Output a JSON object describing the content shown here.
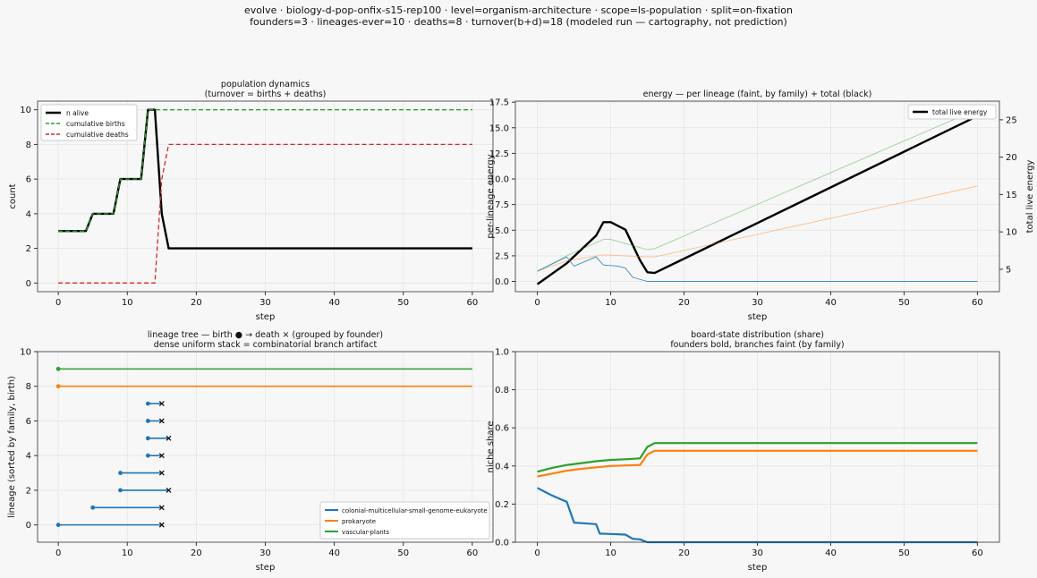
{
  "suptitle": {
    "line1": "evolve · biology-d-pop-onfix-s15-rep100 · level=organism-architecture · scope=ls-population · split=on-fixation",
    "line2": "founders=3 · lineages-ever=10 · deaths=8 · turnover(b+d)=18   (modeled run — cartography, not prediction)"
  },
  "colors": {
    "alive": "#000000",
    "births": "#2ca02c",
    "deaths": "#d62728",
    "blue": "#1f77b4",
    "orange": "#ff7f0e",
    "green": "#2ca02c",
    "grid": "#e6e6e6",
    "background": "#f7f7f7"
  },
  "chart_data": [
    {
      "id": "population",
      "type": "line",
      "title": "population dynamics",
      "subtitle": "(turnover = births + deaths)",
      "xlabel": "step",
      "ylabel": "count",
      "xlim": [
        -3,
        63
      ],
      "ylim": [
        -0.5,
        10.5
      ],
      "xticks": [
        0,
        10,
        20,
        30,
        40,
        50,
        60
      ],
      "yticks": [
        0,
        2,
        4,
        6,
        8,
        10
      ],
      "grid": true,
      "legend": "top-left",
      "series": [
        {
          "name": "n alive",
          "style": "solid",
          "color": "#000000",
          "points": [
            [
              0,
              3
            ],
            [
              4,
              3
            ],
            [
              5,
              4
            ],
            [
              8,
              4
            ],
            [
              9,
              6
            ],
            [
              12,
              6
            ],
            [
              13,
              10
            ],
            [
              14,
              10
            ],
            [
              15,
              4
            ],
            [
              16,
              2
            ],
            [
              60,
              2
            ]
          ]
        },
        {
          "name": "cumulative births",
          "style": "dashed",
          "color": "#2ca02c",
          "points": [
            [
              0,
              3
            ],
            [
              4,
              3
            ],
            [
              5,
              4
            ],
            [
              8,
              4
            ],
            [
              9,
              6
            ],
            [
              12,
              6
            ],
            [
              13,
              10
            ],
            [
              60,
              10
            ]
          ]
        },
        {
          "name": "cumulative deaths",
          "style": "dashed",
          "color": "#d62728",
          "points": [
            [
              0,
              0
            ],
            [
              14,
              0
            ],
            [
              15,
              6
            ],
            [
              16,
              8
            ],
            [
              60,
              8
            ]
          ]
        }
      ]
    },
    {
      "id": "energy",
      "type": "line",
      "title": "energy — per lineage (faint, by family) + total (black)",
      "xlabel": "step",
      "ylabel": "per-lineage energy",
      "ylabel_right": "total live energy",
      "xlim": [
        -3,
        63
      ],
      "ylim": [
        -1,
        17.6
      ],
      "ylim_right": [
        2,
        27.5
      ],
      "xticks": [
        0,
        10,
        20,
        30,
        40,
        50,
        60
      ],
      "yticks": [
        0.0,
        2.5,
        5.0,
        7.5,
        10.0,
        12.5,
        15.0,
        17.5
      ],
      "yticks_right": [
        5,
        10,
        15,
        20,
        25
      ],
      "grid": true,
      "legend": "top-right",
      "series": [
        {
          "name": "total live energy",
          "axis": "right",
          "color": "#000000",
          "points": [
            [
              0,
              3
            ],
            [
              4,
              5.8
            ],
            [
              8,
              9.5
            ],
            [
              9,
              11.3
            ],
            [
              10,
              11.3
            ],
            [
              12,
              10.3
            ],
            [
              14,
              6.2
            ],
            [
              15,
              4.6
            ],
            [
              16,
              4.5
            ],
            [
              60,
              25.5
            ]
          ]
        },
        {
          "axis": "left",
          "color": "#2ca02c",
          "faint": true,
          "points": [
            [
              0,
              1
            ],
            [
              4,
              2.5
            ],
            [
              9,
              4.1
            ],
            [
              10,
              4.1
            ],
            [
              12,
              3.7
            ],
            [
              15,
              3.1
            ],
            [
              16,
              3.2
            ],
            [
              60,
              16.8
            ]
          ]
        },
        {
          "axis": "left",
          "color": "#ff7f0e",
          "faint": true,
          "points": [
            [
              0,
              1
            ],
            [
              4,
              2
            ],
            [
              9,
              2.6
            ],
            [
              12,
              2.5
            ],
            [
              15,
              2.4
            ],
            [
              16,
              2.4
            ],
            [
              60,
              9.3
            ]
          ]
        },
        {
          "axis": "left",
          "color": "#1f77b4",
          "faint": true,
          "points": [
            [
              0,
              1
            ],
            [
              4,
              2.4
            ],
            [
              5,
              1.5
            ],
            [
              8,
              2.4
            ],
            [
              9,
              1.6
            ],
            [
              11,
              1.5
            ],
            [
              12,
              1.3
            ],
            [
              13,
              0.4
            ],
            [
              15,
              0
            ],
            [
              60,
              0
            ]
          ]
        }
      ]
    },
    {
      "id": "tree",
      "type": "lineage-tree",
      "title": "lineage tree — birth ● → death ×  (grouped by founder)",
      "subtitle": "dense uniform stack = combinatorial branch artifact",
      "xlabel": "step",
      "ylabel": "lineage (sorted by family, birth)",
      "xlim": [
        -3,
        63
      ],
      "ylim": [
        -1,
        10
      ],
      "xticks": [
        0,
        10,
        20,
        30,
        40,
        50,
        60
      ],
      "yticks": [
        0,
        2,
        4,
        6,
        8,
        10
      ],
      "grid": true,
      "legend": "bottom-right",
      "families": [
        {
          "name": "colonial-multicellular-small-genome-eukaryote",
          "color": "#1f77b4"
        },
        {
          "name": "prokaryote",
          "color": "#ff7f0e"
        },
        {
          "name": "vascular-plants",
          "color": "#2ca02c"
        }
      ],
      "lineages": [
        {
          "y": 0,
          "birth": 0,
          "death": 15,
          "family": 0
        },
        {
          "y": 1,
          "birth": 5,
          "death": 15,
          "family": 0
        },
        {
          "y": 2,
          "birth": 9,
          "death": 16,
          "family": 0
        },
        {
          "y": 3,
          "birth": 9,
          "death": 15,
          "family": 0
        },
        {
          "y": 4,
          "birth": 13,
          "death": 15,
          "family": 0
        },
        {
          "y": 5,
          "birth": 13,
          "death": 16,
          "family": 0
        },
        {
          "y": 6,
          "birth": 13,
          "death": 15,
          "family": 0
        },
        {
          "y": 7,
          "birth": 13,
          "death": 15,
          "family": 0
        },
        {
          "y": 8,
          "birth": 0,
          "death": null,
          "family": 1
        },
        {
          "y": 9,
          "birth": 0,
          "death": null,
          "family": 2
        }
      ]
    },
    {
      "id": "share",
      "type": "line",
      "title": "board-state distribution (share)",
      "subtitle": "founders bold, branches faint (by family)",
      "xlabel": "step",
      "ylabel": "niche share",
      "xlim": [
        -3,
        63
      ],
      "ylim": [
        0,
        1.0
      ],
      "xticks": [
        0,
        10,
        20,
        30,
        40,
        50,
        60
      ],
      "yticks": [
        0.0,
        0.2,
        0.4,
        0.6,
        0.8,
        1.0
      ],
      "grid": true,
      "series": [
        {
          "color": "#2ca02c",
          "bold": true,
          "points": [
            [
              0,
              0.37
            ],
            [
              2,
              0.39
            ],
            [
              4,
              0.405
            ],
            [
              6,
              0.415
            ],
            [
              8,
              0.425
            ],
            [
              10,
              0.432
            ],
            [
              12,
              0.435
            ],
            [
              14,
              0.44
            ],
            [
              15,
              0.5
            ],
            [
              16,
              0.52
            ],
            [
              60,
              0.52
            ]
          ]
        },
        {
          "color": "#ff7f0e",
          "bold": true,
          "points": [
            [
              0,
              0.345
            ],
            [
              2,
              0.36
            ],
            [
              4,
              0.375
            ],
            [
              6,
              0.385
            ],
            [
              8,
              0.393
            ],
            [
              10,
              0.4
            ],
            [
              12,
              0.403
            ],
            [
              14,
              0.405
            ],
            [
              15,
              0.46
            ],
            [
              16,
              0.48
            ],
            [
              60,
              0.48
            ]
          ]
        },
        {
          "color": "#1f77b4",
          "bold": true,
          "points": [
            [
              0,
              0.285
            ],
            [
              1,
              0.265
            ],
            [
              2,
              0.245
            ],
            [
              3,
              0.228
            ],
            [
              4,
              0.212
            ],
            [
              5,
              0.103
            ],
            [
              6,
              0.1
            ],
            [
              8,
              0.095
            ],
            [
              8.5,
              0.045
            ],
            [
              10,
              0.043
            ],
            [
              12,
              0.04
            ],
            [
              13,
              0.018
            ],
            [
              14,
              0.015
            ],
            [
              15,
              0.0
            ],
            [
              16,
              0.0
            ],
            [
              60,
              0.0
            ]
          ]
        }
      ]
    }
  ]
}
